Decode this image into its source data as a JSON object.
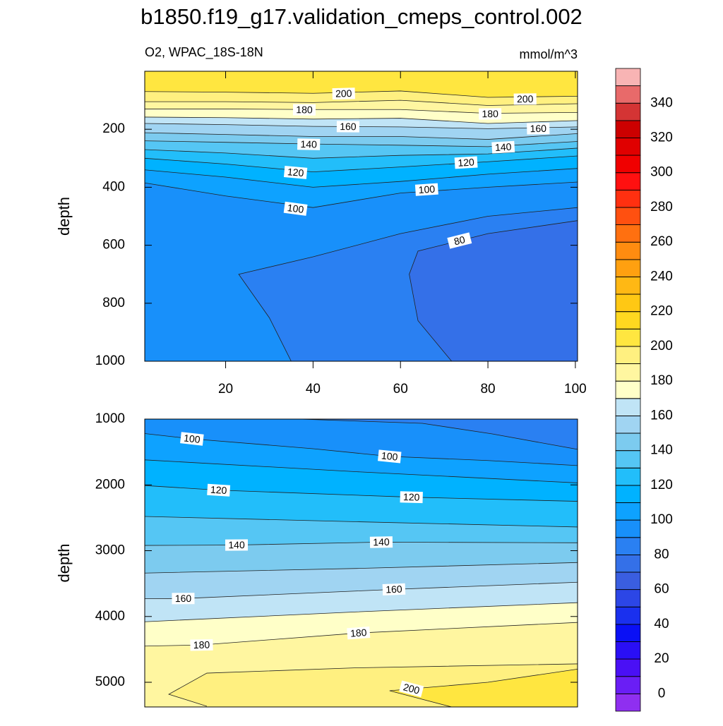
{
  "title": "b1850.f19_g17.validation_cmeps_control.002",
  "subtitle_left": "O2, WPAC_18S-18N",
  "subtitle_right": "mmol/m^3",
  "colorbar": {
    "levels": [
      0,
      10,
      20,
      30,
      40,
      50,
      60,
      70,
      80,
      90,
      100,
      110,
      120,
      130,
      140,
      150,
      160,
      170,
      180,
      190,
      200,
      210,
      220,
      230,
      240,
      250,
      260,
      270,
      280,
      290,
      300,
      310,
      320,
      330,
      340,
      350
    ],
    "colors": [
      "#8f2ff0",
      "#6a1ef5",
      "#4a10f5",
      "#2a0ff5",
      "#0a10f5",
      "#1a30ee",
      "#2c46e6",
      "#3a5ee0",
      "#3470e8",
      "#2a80f2",
      "#1890fa",
      "#0ea2ff",
      "#00b2ff",
      "#22befa",
      "#55c6f4",
      "#7ccbef",
      "#a0d4f2",
      "#c0e4f6",
      "#ffffc8",
      "#fff6a0",
      "#fff080",
      "#ffe640",
      "#ffd820",
      "#ffc814",
      "#ffb814",
      "#ffa010",
      "#ff8c10",
      "#ff7010",
      "#ff5010",
      "#ff3010",
      "#ff1010",
      "#f00000",
      "#e00000",
      "#cc0000",
      "#d43434",
      "#e86a6a",
      "#f8b4b4"
    ],
    "ticks": [
      0,
      20,
      40,
      60,
      80,
      100,
      120,
      140,
      160,
      180,
      200,
      220,
      240,
      260,
      280,
      300,
      320,
      340
    ]
  },
  "chart_data": [
    {
      "type": "contour",
      "ylabel": "depth",
      "xlim": [
        1.5,
        100.5
      ],
      "ylim": [
        0,
        1000
      ],
      "y_reversed": true,
      "xticks": [
        20,
        40,
        60,
        80,
        100
      ],
      "yticks": [
        200,
        400,
        600,
        800,
        1000
      ],
      "contours": [
        {
          "level": 200,
          "x": [
            1.5,
            20,
            40,
            60,
            80,
            100.5
          ],
          "y": [
            70,
            72,
            76,
            68,
            90,
            86
          ],
          "labels": [
            [
              47,
              77
            ],
            [
              88.5,
              96
            ]
          ]
        },
        {
          "level": 190,
          "x": [
            1.5,
            20,
            40,
            60,
            80,
            100.5
          ],
          "y": [
            105,
            105,
            108,
            100,
            118,
            112
          ]
        },
        {
          "level": 180,
          "x": [
            1.5,
            20,
            40,
            60,
            80,
            100.5
          ],
          "y": [
            130,
            130,
            132,
            132,
            145,
            142
          ],
          "labels": [
            [
              38,
              133
            ],
            [
              80.5,
              147
            ]
          ]
        },
        {
          "level": 170,
          "x": [
            1.5,
            20,
            40,
            60,
            80,
            100.5
          ],
          "y": [
            158,
            160,
            165,
            162,
            180,
            170
          ]
        },
        {
          "level": 160,
          "x": [
            1.5,
            20,
            40,
            60,
            80,
            100.5
          ],
          "y": [
            180,
            184,
            190,
            192,
            198,
            192
          ],
          "labels": [
            [
              48,
              191
            ],
            [
              91.5,
              198
            ]
          ]
        },
        {
          "level": 150,
          "x": [
            1.5,
            20,
            40,
            60,
            80,
            100.5
          ],
          "y": [
            212,
            218,
            225,
            225,
            235,
            215
          ]
        },
        {
          "level": 140,
          "x": [
            1.5,
            20,
            40,
            60,
            80,
            100.5
          ],
          "y": [
            240,
            245,
            251,
            255,
            260,
            242
          ],
          "labels": [
            [
              39,
              252
            ],
            [
              83.5,
              262
            ]
          ]
        },
        {
          "level": 130,
          "x": [
            1.5,
            20,
            40,
            60,
            80,
            100.5
          ],
          "y": [
            270,
            282,
            300,
            290,
            285,
            265
          ]
        },
        {
          "level": 120,
          "x": [
            1.5,
            20,
            40,
            60,
            80,
            100.5
          ],
          "y": [
            300,
            320,
            347,
            330,
            312,
            292
          ],
          "labels": [
            [
              36,
              349
            ],
            [
              75,
              315
            ]
          ]
        },
        {
          "level": 110,
          "x": [
            1.5,
            20,
            40,
            60,
            80,
            100.5
          ],
          "y": [
            340,
            365,
            400,
            380,
            355,
            335
          ]
        },
        {
          "level": 100,
          "x": [
            1.5,
            20,
            40,
            60,
            80,
            100.5
          ],
          "y": [
            385,
            430,
            470,
            420,
            400,
            382
          ],
          "labels": [
            [
              36,
              474
            ],
            [
              66,
              408
            ]
          ]
        },
        {
          "level": 90,
          "x": [
            35,
            30,
            23,
            40,
            60,
            80,
            100.5
          ],
          "y": [
            1000,
            850,
            700,
            640,
            560,
            500,
            470
          ]
        },
        {
          "level": 80,
          "x": [
            100.5,
            80,
            64,
            62,
            64,
            71.7
          ],
          "y": [
            515,
            560,
            620,
            700,
            860,
            1000
          ],
          "labels": [
            [
              73.5,
              584
            ]
          ]
        }
      ]
    },
    {
      "type": "contour",
      "ylabel": "depth",
      "xlim": [
        1.5,
        100.5
      ],
      "ylim": [
        1000,
        5375
      ],
      "y_reversed": true,
      "yticks": [
        1000,
        2000,
        3000,
        4000,
        5000
      ],
      "contours": [
        {
          "level": 90,
          "x": [
            1.5,
            37,
            65,
            81,
            100.5
          ],
          "y": [
            1000,
            1000,
            1064,
            1225,
            1460
          ]
        },
        {
          "level": 100,
          "x": [
            1.5,
            12.3,
            40,
            57.5,
            80,
            100.5
          ],
          "y": [
            1220,
            1300,
            1450,
            1567,
            1630,
            1706
          ],
          "labels": [
            [
              12.3,
              1300
            ],
            [
              57.5,
              1567
            ]
          ]
        },
        {
          "level": 110,
          "x": [
            1.5,
            50,
            100.5
          ],
          "y": [
            1620,
            1800,
            1970
          ]
        },
        {
          "level": 120,
          "x": [
            1.5,
            18.4,
            62.5,
            100.5
          ],
          "y": [
            2010,
            2080,
            2187,
            2250
          ],
          "labels": [
            [
              18.4,
              2080
            ],
            [
              62.5,
              2187
            ]
          ]
        },
        {
          "level": 130,
          "x": [
            1.5,
            50,
            100.5
          ],
          "y": [
            2480,
            2560,
            2640
          ]
        },
        {
          "level": 140,
          "x": [
            1.5,
            22.5,
            55.6,
            100.5
          ],
          "y": [
            2920,
            2914,
            2870,
            2880
          ],
          "labels": [
            [
              22.5,
              2914
            ],
            [
              55.6,
              2870
            ]
          ]
        },
        {
          "level": 150,
          "x": [
            1.5,
            50,
            100.5
          ],
          "y": [
            3340,
            3270,
            3180
          ]
        },
        {
          "level": 160,
          "x": [
            1.5,
            10.3,
            58.5,
            100.5
          ],
          "y": [
            3730,
            3727,
            3588,
            3480
          ],
          "labels": [
            [
              10.3,
              3727
            ],
            [
              58.5,
              3588
            ]
          ]
        },
        {
          "level": 170,
          "x": [
            1.5,
            50,
            100.5
          ],
          "y": [
            4080,
            3930,
            3790
          ]
        },
        {
          "level": 180,
          "x": [
            1.5,
            14.5,
            50.4,
            100.5
          ],
          "y": [
            4450,
            4433,
            4251,
            4090
          ],
          "labels": [
            [
              14.5,
              4433
            ],
            [
              50.4,
              4251
            ]
          ]
        },
        {
          "level": 190,
          "x": [
            15.7,
            7,
            15.7,
            50,
            100.5
          ],
          "y": [
            5364,
            5182,
            4861,
            4780,
            4720
          ]
        },
        {
          "level": 200,
          "x": [
            71.7,
            57.5,
            80,
            100.5
          ],
          "y": [
            5375,
            5128,
            5000,
            4800
          ],
          "labels": [
            [
              62.5,
              5100
            ]
          ]
        }
      ]
    }
  ]
}
